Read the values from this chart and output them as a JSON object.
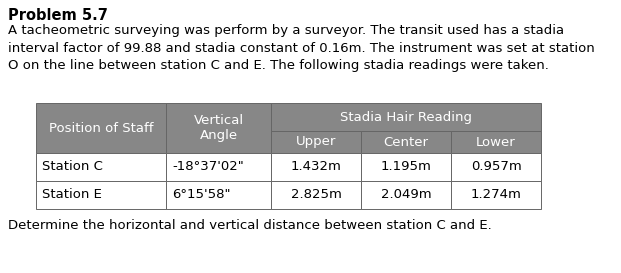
{
  "title": "Problem 5.7",
  "paragraph": "A tacheometric surveying was perform by a surveyor. The transit used has a stadia\ninterval factor of 99.88 and stadia constant of 0.16m. The instrument was set at station\nO on the line between station C and E. The following stadia readings were taken.",
  "footer": "Determine the horizontal and vertical distance between station C and E.",
  "table": {
    "header_bg": "#878787",
    "row_bg": "#ffffff",
    "border_color": "#666666",
    "rows": [
      [
        "Station C",
        "-18°37'02\"",
        "1.432m",
        "1.195m",
        "0.957m"
      ],
      [
        "Station E",
        "6°15'58\"",
        "2.825m",
        "2.049m",
        "1.274m"
      ]
    ],
    "header_text_color": "#ffffff",
    "row_text_color": "#000000"
  },
  "bg_color": "#ffffff",
  "title_fontsize": 10.5,
  "body_fontsize": 9.5,
  "table_fontsize": 9.5
}
